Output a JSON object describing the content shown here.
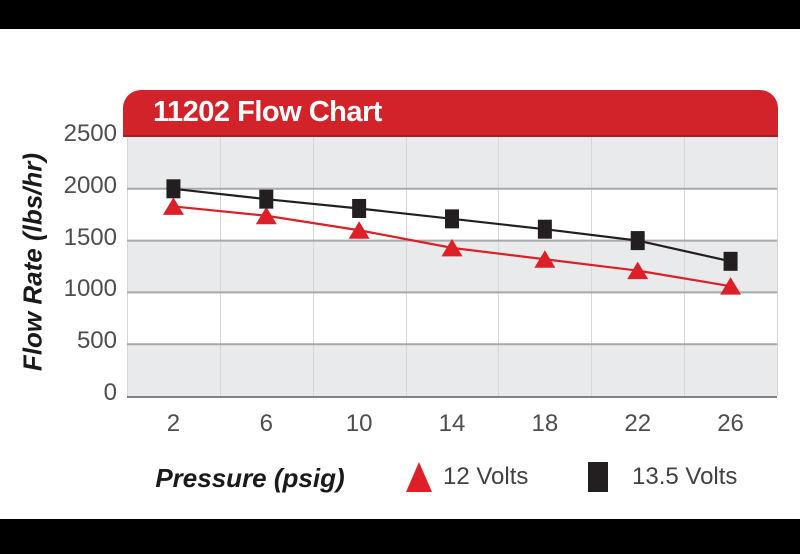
{
  "page": {
    "background": "#ffffff",
    "letterbox_bar_color": "#000000"
  },
  "header": {
    "title": "11202 Flow Chart",
    "background_color": "#d2232a",
    "text_color": "#ffffff"
  },
  "chart_data": {
    "type": "line",
    "title": "11202 Flow Chart",
    "xlabel": "Pressure (psig)",
    "ylabel": "Flow Rate (lbs/hr)",
    "x": [
      2,
      6,
      10,
      14,
      18,
      22,
      26
    ],
    "y_ticks": [
      0,
      500,
      1000,
      1500,
      2000,
      2500
    ],
    "ylim": [
      0,
      2500
    ],
    "grid": "horizontal gridlines at 500 intervals, vertical category separators, alternating gray/white bands",
    "legend_position": "bottom",
    "band_fill_color": "#e9eaec",
    "h_gridline_color": "#a7a9ac",
    "v_gridline_color": "#d4d6d8",
    "axis_line_color": "#808285",
    "tick_text_color": "#4d4d4f",
    "series": [
      {
        "name": "12 Volts",
        "marker": "triangle",
        "color": "#dd2028",
        "values": [
          1830,
          1740,
          1600,
          1430,
          1320,
          1210,
          1060
        ]
      },
      {
        "name": "13.5 Volts",
        "marker": "square",
        "color": "#231f20",
        "values": [
          2000,
          1900,
          1810,
          1710,
          1610,
          1500,
          1300
        ]
      }
    ]
  },
  "legend": {
    "items": [
      {
        "label": "12 Volts"
      },
      {
        "label": "13.5 Volts"
      }
    ]
  }
}
